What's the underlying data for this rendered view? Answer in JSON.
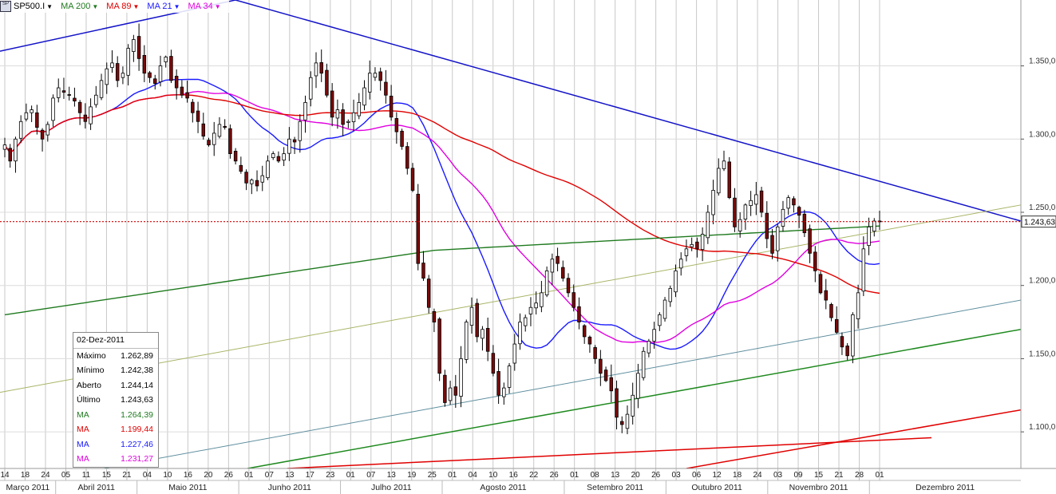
{
  "header": {
    "symbol": "SP500.I",
    "indicators": [
      {
        "label": "MA 200",
        "color": "#1f7a1f"
      },
      {
        "label": "MA 89",
        "color": "#e00000"
      },
      {
        "label": "MA 21",
        "color": "#1a1aff"
      },
      {
        "label": "MA 34",
        "color": "#e000e0"
      }
    ]
  },
  "info_box": {
    "date": "02-Dez-2011",
    "rows": [
      {
        "label": "Máximo",
        "value": "1.262,89",
        "color": "#000000"
      },
      {
        "label": "Mínimo",
        "value": "1.242,38",
        "color": "#000000"
      },
      {
        "label": "Aberto",
        "value": "1.244,14",
        "color": "#000000"
      },
      {
        "label": "Último",
        "value": "1.243,63",
        "color": "#000000"
      },
      {
        "label": "MA",
        "value": "1.264,39",
        "color": "#1f7a1f"
      },
      {
        "label": "MA",
        "value": "1.199,44",
        "color": "#e00000"
      },
      {
        "label": "MA",
        "value": "1.227,46",
        "color": "#1a1aff"
      },
      {
        "label": "MA",
        "value": "1.231,27",
        "color": "#e000e0"
      }
    ]
  },
  "chart_data": {
    "type": "candlestick",
    "instrument": "SP500.I",
    "ylim": [
      1075,
      1395
    ],
    "y_ticks": [
      {
        "value": 1100,
        "label": "1.100,0"
      },
      {
        "value": 1150,
        "label": "1.150,0"
      },
      {
        "value": 1200,
        "label": "1.200,0"
      },
      {
        "value": 1250,
        "label": "1.250,0"
      },
      {
        "value": 1300,
        "label": "1.300,0"
      },
      {
        "value": 1350,
        "label": "1.350,0"
      }
    ],
    "last_price": {
      "value": 1243.63,
      "label": "1.243,63"
    },
    "x_day_ticks": [
      "14",
      "18",
      "24",
      "05",
      "11",
      "15",
      "21",
      "04",
      "10",
      "16",
      "20",
      "26",
      "01",
      "07",
      "13",
      "17",
      "23",
      "01",
      "07",
      "13",
      "19",
      "25",
      "01",
      "04",
      "10",
      "16",
      "22",
      "26",
      "01",
      "08",
      "13",
      "20",
      "26",
      "03",
      "06",
      "12",
      "18",
      "24",
      "03",
      "09",
      "15",
      "21",
      "28",
      "01"
    ],
    "months": [
      "Março 2011",
      "Abril 2011",
      "Maio 2011",
      "Junho 2011",
      "Julho 2011",
      "Agosto 2011",
      "Setembro 2011",
      "Outubro 2011",
      "Novembro 2011",
      "Dezembro 2011"
    ],
    "close_series": [
      1296,
      1285,
      1300,
      1312,
      1318,
      1320,
      1308,
      1300,
      1310,
      1328,
      1335,
      1332,
      1330,
      1326,
      1318,
      1312,
      1322,
      1330,
      1340,
      1348,
      1352,
      1340,
      1345,
      1362,
      1368,
      1355,
      1345,
      1342,
      1338,
      1350,
      1356,
      1340,
      1335,
      1330,
      1328,
      1318,
      1312,
      1302,
      1296,
      1304,
      1310,
      1308,
      1290,
      1285,
      1278,
      1270,
      1272,
      1268,
      1275,
      1285,
      1290,
      1285,
      1290,
      1300,
      1298,
      1312,
      1325,
      1342,
      1352,
      1345,
      1330,
      1315,
      1320,
      1310,
      1312,
      1318,
      1325,
      1335,
      1345,
      1345,
      1340,
      1330,
      1315,
      1305,
      1295,
      1280,
      1265,
      1215,
      1205,
      1185,
      1175,
      1140,
      1120,
      1130,
      1125,
      1150,
      1175,
      1185,
      1165,
      1170,
      1155,
      1140,
      1125,
      1130,
      1145,
      1160,
      1175,
      1178,
      1185,
      1188,
      1195,
      1210,
      1218,
      1215,
      1205,
      1195,
      1185,
      1175,
      1165,
      1160,
      1150,
      1140,
      1135,
      1128,
      1110,
      1105,
      1112,
      1125,
      1140,
      1155,
      1162,
      1170,
      1180,
      1190,
      1198,
      1210,
      1218,
      1225,
      1228,
      1225,
      1235,
      1250,
      1265,
      1280,
      1285,
      1260,
      1240,
      1245,
      1255,
      1258,
      1262,
      1250,
      1232,
      1222,
      1240,
      1252,
      1260,
      1255,
      1248,
      1236,
      1222,
      1210,
      1195,
      1190,
      1178,
      1168,
      1158,
      1152,
      1180,
      1195,
      1225,
      1240,
      1244,
      1243.63
    ],
    "annotations": [
      {
        "name": "resistance-trendline",
        "color": "#1414c8",
        "from": [
          "2011-03-10",
          1360
        ],
        "to": [
          "2011-12-09",
          1245
        ]
      },
      {
        "name": "support-trendline",
        "color": "#1f8a1f",
        "from": [
          "2011-06-01",
          1075
        ],
        "to": [
          "2011-12-09",
          1170
        ]
      }
    ],
    "grid": true,
    "legend": "top-left"
  }
}
